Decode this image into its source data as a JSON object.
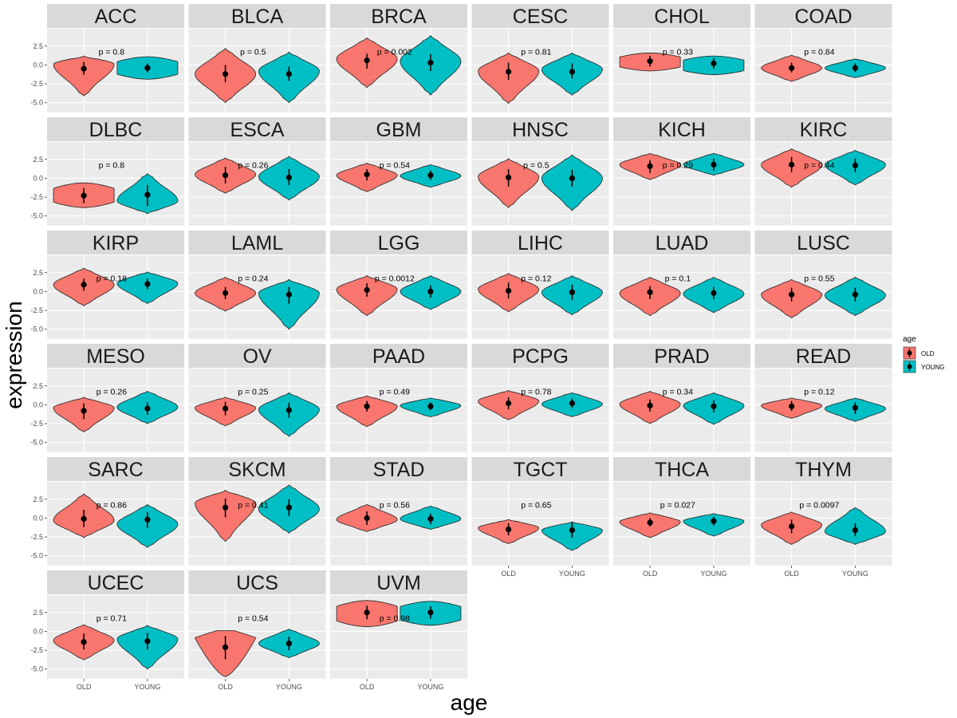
{
  "chart_data": {
    "type": "violin",
    "title": "",
    "xlabel": "age",
    "ylabel": "expression",
    "categories": [
      "OLD",
      "YOUNG"
    ],
    "ylim": [
      -6.3,
      4.8
    ],
    "yticks": [
      2.5,
      0.0,
      -2.5,
      -5.0
    ],
    "ytick_labels": [
      "2.5",
      "0.0",
      "-2.5",
      "-5.0"
    ],
    "grid": true,
    "legend": {
      "title": "age",
      "position": "right",
      "entries": [
        {
          "label": "OLD",
          "color": "#F8766D"
        },
        {
          "label": "YOUNG",
          "color": "#00BFC4"
        }
      ]
    },
    "colors": {
      "OLD": "#F8766D",
      "YOUNG": "#00BFC4"
    },
    "panels": [
      {
        "name": "ACC",
        "p": "p = 0.8",
        "OLD": {
          "mean": -0.5,
          "lo": -1.3,
          "hi": 0.4,
          "min": -4.1,
          "max": 1.2,
          "bulge": 0.1
        },
        "YOUNG": {
          "mean": -0.4,
          "lo": -1.0,
          "hi": 0.2,
          "min": -1.9,
          "max": 1.1,
          "bulge": -0.5,
          "shape": "flat"
        }
      },
      {
        "name": "BLCA",
        "p": "p = 0.5",
        "OLD": {
          "mean": -1.2,
          "lo": -2.3,
          "hi": 0.0,
          "min": -5.0,
          "max": 2.2,
          "bulge": -1.2
        },
        "YOUNG": {
          "mean": -1.2,
          "lo": -2.1,
          "hi": -0.2,
          "min": -5.0,
          "max": 1.7,
          "bulge": -0.8
        }
      },
      {
        "name": "BRCA",
        "p": "p = 0.002",
        "OLD": {
          "mean": 0.6,
          "lo": -0.5,
          "hi": 1.5,
          "min": -3.0,
          "max": 3.6,
          "bulge": 0.8
        },
        "YOUNG": {
          "mean": 0.3,
          "lo": -0.8,
          "hi": 1.4,
          "min": -4.0,
          "max": 3.9,
          "bulge": 0.5
        }
      },
      {
        "name": "CESC",
        "p": "p = 0.81",
        "OLD": {
          "mean": -0.9,
          "lo": -2.0,
          "hi": 0.3,
          "min": -5.1,
          "max": 1.6,
          "bulge": -0.8
        },
        "YOUNG": {
          "mean": -0.9,
          "lo": -1.8,
          "hi": 0.2,
          "min": -4.0,
          "max": 1.6,
          "bulge": -0.6
        }
      },
      {
        "name": "CHOL",
        "p": "p = 0.33",
        "OLD": {
          "mean": 0.5,
          "lo": -0.2,
          "hi": 1.2,
          "min": -0.8,
          "max": 1.6,
          "bulge": 0.7,
          "shape": "flat"
        },
        "YOUNG": {
          "mean": 0.2,
          "lo": -0.5,
          "hi": 0.9,
          "min": -1.3,
          "max": 1.2,
          "bulge": 0.3,
          "shape": "flat"
        }
      },
      {
        "name": "COAD",
        "p": "p = 0.84",
        "OLD": {
          "mean": -0.4,
          "lo": -1.0,
          "hi": 0.3,
          "min": -2.2,
          "max": 1.3,
          "bulge": -0.4
        },
        "YOUNG": {
          "mean": -0.4,
          "lo": -0.9,
          "hi": 0.2,
          "min": -1.7,
          "max": 0.8,
          "bulge": -0.4
        }
      },
      {
        "name": "DLBC",
        "p": "p = 0.8",
        "OLD": {
          "mean": -2.3,
          "lo": -3.3,
          "hi": -1.3,
          "min": -3.9,
          "max": -0.6,
          "bulge": -2.0,
          "shape": "flat"
        },
        "YOUNG": {
          "mean": -2.2,
          "lo": -3.7,
          "hi": -0.9,
          "min": -4.7,
          "max": 0.6,
          "bulge": -3.0
        }
      },
      {
        "name": "ESCA",
        "p": "p = 0.26",
        "OLD": {
          "mean": 0.4,
          "lo": -0.7,
          "hi": 1.5,
          "min": -2.0,
          "max": 2.7,
          "bulge": 0.5
        },
        "YOUNG": {
          "mean": 0.1,
          "lo": -0.9,
          "hi": 1.2,
          "min": -2.9,
          "max": 2.9,
          "bulge": 0.2
        }
      },
      {
        "name": "GBM",
        "p": "p = 0.54",
        "OLD": {
          "mean": 0.5,
          "lo": -0.3,
          "hi": 1.2,
          "min": -1.8,
          "max": 2.0,
          "bulge": 0.4
        },
        "YOUNG": {
          "mean": 0.4,
          "lo": -0.2,
          "hi": 1.0,
          "min": -1.2,
          "max": 1.8,
          "bulge": 0.3
        }
      },
      {
        "name": "HNSC",
        "p": "p = 0.5",
        "OLD": {
          "mean": 0.1,
          "lo": -1.1,
          "hi": 1.2,
          "min": -3.9,
          "max": 2.6,
          "bulge": 0.2
        },
        "YOUNG": {
          "mean": 0.0,
          "lo": -1.1,
          "hi": 1.1,
          "min": -4.3,
          "max": 3.1,
          "bulge": 0.0
        }
      },
      {
        "name": "KICH",
        "p": "p = 0.29",
        "OLD": {
          "mean": 1.6,
          "lo": 0.7,
          "hi": 2.4,
          "min": -0.2,
          "max": 3.3,
          "bulge": 1.8
        },
        "YOUNG": {
          "mean": 1.8,
          "lo": 1.0,
          "hi": 2.6,
          "min": 0.4,
          "max": 3.3,
          "bulge": 1.8
        }
      },
      {
        "name": "KIRC",
        "p": "p = 0.44",
        "OLD": {
          "mean": 1.8,
          "lo": 0.8,
          "hi": 2.8,
          "min": -1.2,
          "max": 3.9,
          "bulge": 1.8
        },
        "YOUNG": {
          "mean": 1.7,
          "lo": 0.8,
          "hi": 2.6,
          "min": -0.9,
          "max": 3.7,
          "bulge": 1.8
        }
      },
      {
        "name": "KIRP",
        "p": "p = 0.18",
        "OLD": {
          "mean": 0.9,
          "lo": 0.1,
          "hi": 1.7,
          "min": -1.9,
          "max": 3.1,
          "bulge": 0.9
        },
        "YOUNG": {
          "mean": 1.0,
          "lo": 0.3,
          "hi": 1.7,
          "min": -1.6,
          "max": 2.6,
          "bulge": 1.1
        }
      },
      {
        "name": "LAML",
        "p": "p = 0.24",
        "OLD": {
          "mean": -0.2,
          "lo": -1.0,
          "hi": 0.6,
          "min": -2.6,
          "max": 1.9,
          "bulge": -0.2
        },
        "YOUNG": {
          "mean": -0.4,
          "lo": -1.6,
          "hi": 0.6,
          "min": -5.0,
          "max": 1.6,
          "bulge": -0.2
        }
      },
      {
        "name": "LGG",
        "p": "p = 0.0012",
        "OLD": {
          "mean": 0.2,
          "lo": -0.7,
          "hi": 1.1,
          "min": -3.2,
          "max": 2.1,
          "bulge": 0.3
        },
        "YOUNG": {
          "mean": 0.0,
          "lo": -0.8,
          "hi": 0.8,
          "min": -2.4,
          "max": 2.1,
          "bulge": 0.0
        }
      },
      {
        "name": "LIHC",
        "p": "p = 0.12",
        "OLD": {
          "mean": 0.1,
          "lo": -0.9,
          "hi": 1.2,
          "min": -2.7,
          "max": 2.4,
          "bulge": 0.3
        },
        "YOUNG": {
          "mean": -0.1,
          "lo": -1.1,
          "hi": 0.9,
          "min": -3.1,
          "max": 2.1,
          "bulge": -0.1
        }
      },
      {
        "name": "LUAD",
        "p": "p = 0.1",
        "OLD": {
          "mean": -0.1,
          "lo": -1.0,
          "hi": 0.7,
          "min": -3.2,
          "max": 1.9,
          "bulge": -0.2
        },
        "YOUNG": {
          "mean": -0.2,
          "lo": -1.0,
          "hi": 0.6,
          "min": -2.8,
          "max": 1.9,
          "bulge": -0.3
        }
      },
      {
        "name": "LUSC",
        "p": "p = 0.55",
        "OLD": {
          "mean": -0.4,
          "lo": -1.3,
          "hi": 0.5,
          "min": -3.5,
          "max": 1.6,
          "bulge": -0.4
        },
        "YOUNG": {
          "mean": -0.4,
          "lo": -1.3,
          "hi": 0.5,
          "min": -3.2,
          "max": 1.9,
          "bulge": -0.5
        }
      },
      {
        "name": "MESO",
        "p": "p = 0.26",
        "OLD": {
          "mean": -0.8,
          "lo": -1.9,
          "hi": 0.2,
          "min": -3.6,
          "max": 1.0,
          "bulge": -0.4
        },
        "YOUNG": {
          "mean": -0.5,
          "lo": -1.3,
          "hi": 0.3,
          "min": -2.5,
          "max": 1.8,
          "bulge": -0.3
        }
      },
      {
        "name": "OV",
        "p": "p = 0.25",
        "OLD": {
          "mean": -0.5,
          "lo": -1.4,
          "hi": 0.4,
          "min": -2.8,
          "max": 1.0,
          "bulge": -0.4
        },
        "YOUNG": {
          "mean": -0.7,
          "lo": -1.7,
          "hi": 0.3,
          "min": -4.2,
          "max": 1.6,
          "bulge": -0.6
        }
      },
      {
        "name": "PAAD",
        "p": "p = 0.49",
        "OLD": {
          "mean": -0.2,
          "lo": -0.9,
          "hi": 0.5,
          "min": -2.9,
          "max": 1.2,
          "bulge": -0.2
        },
        "YOUNG": {
          "mean": -0.2,
          "lo": -0.7,
          "hi": 0.3,
          "min": -1.6,
          "max": 0.9,
          "bulge": -0.1
        }
      },
      {
        "name": "PCPG",
        "p": "p = 0.78",
        "OLD": {
          "mean": 0.2,
          "lo": -0.6,
          "hi": 1.0,
          "min": -2.0,
          "max": 1.9,
          "bulge": 0.5
        },
        "YOUNG": {
          "mean": 0.2,
          "lo": -0.4,
          "hi": 0.8,
          "min": -1.6,
          "max": 1.6,
          "bulge": 0.1
        }
      },
      {
        "name": "PRAD",
        "p": "p = 0.34",
        "OLD": {
          "mean": -0.1,
          "lo": -0.9,
          "hi": 0.7,
          "min": -2.5,
          "max": 1.8,
          "bulge": 0.1
        },
        "YOUNG": {
          "mean": -0.2,
          "lo": -1.0,
          "hi": 0.6,
          "min": -2.6,
          "max": 1.6,
          "bulge": -0.1
        }
      },
      {
        "name": "READ",
        "p": "p = 0.12",
        "OLD": {
          "mean": -0.2,
          "lo": -0.8,
          "hi": 0.5,
          "min": -1.8,
          "max": 0.9,
          "bulge": -0.1
        },
        "YOUNG": {
          "mean": -0.4,
          "lo": -1.2,
          "hi": 0.3,
          "min": -2.2,
          "max": 0.9,
          "bulge": -0.5
        }
      },
      {
        "name": "SARC",
        "p": "p = 0.86",
        "OLD": {
          "mean": -0.1,
          "lo": -1.2,
          "hi": 1.1,
          "min": -2.6,
          "max": 3.2,
          "bulge": -0.3
        },
        "YOUNG": {
          "mean": -0.2,
          "lo": -1.3,
          "hi": 0.8,
          "min": -3.9,
          "max": 1.8,
          "bulge": -0.8
        }
      },
      {
        "name": "SKCM",
        "p": "p = 0.41",
        "OLD": {
          "mean": 1.4,
          "lo": 0.1,
          "hi": 2.6,
          "min": -3.1,
          "max": 3.7,
          "bulge": 2.0
        },
        "YOUNG": {
          "mean": 1.4,
          "lo": 0.3,
          "hi": 2.5,
          "min": -2.0,
          "max": 4.4,
          "bulge": 1.2
        }
      },
      {
        "name": "STAD",
        "p": "p = 0.56",
        "OLD": {
          "mean": 0.0,
          "lo": -0.9,
          "hi": 0.9,
          "min": -1.8,
          "max": 1.8,
          "bulge": -0.2
        },
        "YOUNG": {
          "mean": -0.1,
          "lo": -0.8,
          "hi": 0.6,
          "min": -1.5,
          "max": 1.6,
          "bulge": -0.1
        }
      },
      {
        "name": "TGCT",
        "p": "p = 0.65",
        "OLD": {
          "mean": -1.5,
          "lo": -2.3,
          "hi": -0.7,
          "min": -3.4,
          "max": -0.2,
          "bulge": -1.3
        },
        "YOUNG": {
          "mean": -1.6,
          "lo": -2.6,
          "hi": -0.6,
          "min": -4.3,
          "max": -0.5,
          "bulge": -1.6
        }
      },
      {
        "name": "THCA",
        "p": "p = 0.027",
        "OLD": {
          "mean": -0.6,
          "lo": -1.1,
          "hi": 0.0,
          "min": -2.6,
          "max": 0.7,
          "bulge": -0.5
        },
        "YOUNG": {
          "mean": -0.4,
          "lo": -1.0,
          "hi": 0.2,
          "min": -2.4,
          "max": 0.6,
          "bulge": -0.4
        }
      },
      {
        "name": "THYM",
        "p": "p = 0.0097",
        "OLD": {
          "mean": -1.1,
          "lo": -2.0,
          "hi": -0.2,
          "min": -3.5,
          "max": 0.8,
          "bulge": -0.9
        },
        "YOUNG": {
          "mean": -1.6,
          "lo": -2.4,
          "hi": -0.7,
          "min": -3.5,
          "max": 1.4,
          "bulge": -1.8
        }
      },
      {
        "name": "UCEC",
        "p": "p = 0.71",
        "OLD": {
          "mean": -1.4,
          "lo": -2.4,
          "hi": -0.3,
          "min": -3.8,
          "max": 0.9,
          "bulge": -1.2
        },
        "YOUNG": {
          "mean": -1.3,
          "lo": -2.4,
          "hi": -0.2,
          "min": -5.0,
          "max": 0.8,
          "bulge": -1.0
        }
      },
      {
        "name": "UCS",
        "p": "p = 0.54",
        "OLD": {
          "mean": -2.1,
          "lo": -3.7,
          "hi": -0.6,
          "min": -6.0,
          "max": 0.1,
          "bulge": -1.0,
          "shape": "wedge"
        },
        "YOUNG": {
          "mean": -1.6,
          "lo": -2.5,
          "hi": -0.7,
          "min": -3.5,
          "max": 0.3,
          "bulge": -1.6
        }
      },
      {
        "name": "UVM",
        "p": "p = 0.98",
        "OLD": {
          "mean": 2.5,
          "lo": 1.6,
          "hi": 3.4,
          "min": 0.6,
          "max": 4.1,
          "bulge": 3.0,
          "shape": "flat"
        },
        "YOUNG": {
          "mean": 2.5,
          "lo": 1.7,
          "hi": 3.3,
          "min": 0.8,
          "max": 4.0,
          "bulge": 2.8,
          "shape": "flat"
        }
      }
    ]
  }
}
